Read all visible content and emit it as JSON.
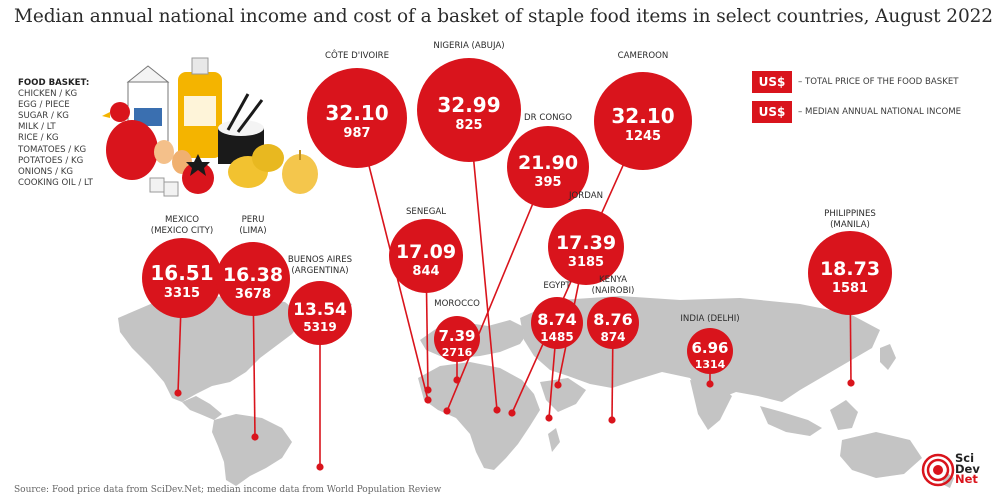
{
  "title": "Median annual national income and cost of a basket of staple food items in select countries, August 2022",
  "basket": {
    "heading": "FOOD BASKET:",
    "items": [
      "CHICKEN / KG",
      "EGG / PIECE",
      "SUGAR / KG",
      "MILK / LT",
      "RICE / KG",
      "TOMATOES / KG",
      "POTATOES / KG",
      "ONIONS / KG",
      "COOKING OIL / LT"
    ]
  },
  "legend": {
    "total": {
      "box": "US$",
      "text": "– TOTAL PRICE OF THE FOOD BASKET"
    },
    "income": {
      "box": "US$",
      "text": "– MEDIAN ANNUAL NATIONAL INCOME"
    }
  },
  "source": "Source: Food price data from SciDev.Net; median income data from World Population Review",
  "logo": {
    "line1": "Sci",
    "line2": "Dev",
    "line3": "Net"
  },
  "colors": {
    "bubble": "#d9141c",
    "map": "#c4c4c4",
    "text": "#2b2b2b"
  },
  "chart_data": {
    "type": "bubble-map",
    "title": "Median annual national income and cost of a basket of staple food items in select countries, August 2022",
    "series": [
      {
        "name": "TOTAL PRICE OF THE FOOD BASKET",
        "unit": "US$"
      },
      {
        "name": "MEDIAN ANNUAL NATIONAL INCOME",
        "unit": "US$"
      }
    ],
    "points": [
      {
        "label": [
          "MEXICO",
          "(MEXICO CITY)"
        ],
        "basket_price": "16.51",
        "annual_income": "3315"
      },
      {
        "label": [
          "PERU",
          "(LIMA)"
        ],
        "basket_price": "16.38",
        "annual_income": "3678"
      },
      {
        "label": [
          "BUENOS AIRES",
          "(ARGENTINA)"
        ],
        "basket_price": "13.54",
        "annual_income": "5319"
      },
      {
        "label": [
          "CÔTE D'IVOIRE"
        ],
        "basket_price": "32.10",
        "annual_income": "987"
      },
      {
        "label": [
          "NIGERIA (ABUJA)"
        ],
        "basket_price": "32.99",
        "annual_income": "825"
      },
      {
        "label": [
          "CAMEROON"
        ],
        "basket_price": "32.10",
        "annual_income": "1245"
      },
      {
        "label": [
          "DR CONGO"
        ],
        "basket_price": "21.90",
        "annual_income": "395"
      },
      {
        "label": [
          "SENEGAL"
        ],
        "basket_price": "17.09",
        "annual_income": "844"
      },
      {
        "label": [
          "JORDAN"
        ],
        "basket_price": "17.39",
        "annual_income": "3185"
      },
      {
        "label": [
          "MOROCCO"
        ],
        "basket_price": "7.39",
        "annual_income": "2716"
      },
      {
        "label": [
          "EGYPT"
        ],
        "basket_price": "8.74",
        "annual_income": "1485"
      },
      {
        "label": [
          "KENYA",
          "(NAIROBI)"
        ],
        "basket_price": "8.76",
        "annual_income": "874"
      },
      {
        "label": [
          "INDIA (DELHI)"
        ],
        "basket_price": "6.96",
        "annual_income": "1314"
      },
      {
        "label": [
          "PHILIPPINES",
          "(MANILA)"
        ],
        "basket_price": "18.73",
        "annual_income": "1581"
      }
    ]
  }
}
